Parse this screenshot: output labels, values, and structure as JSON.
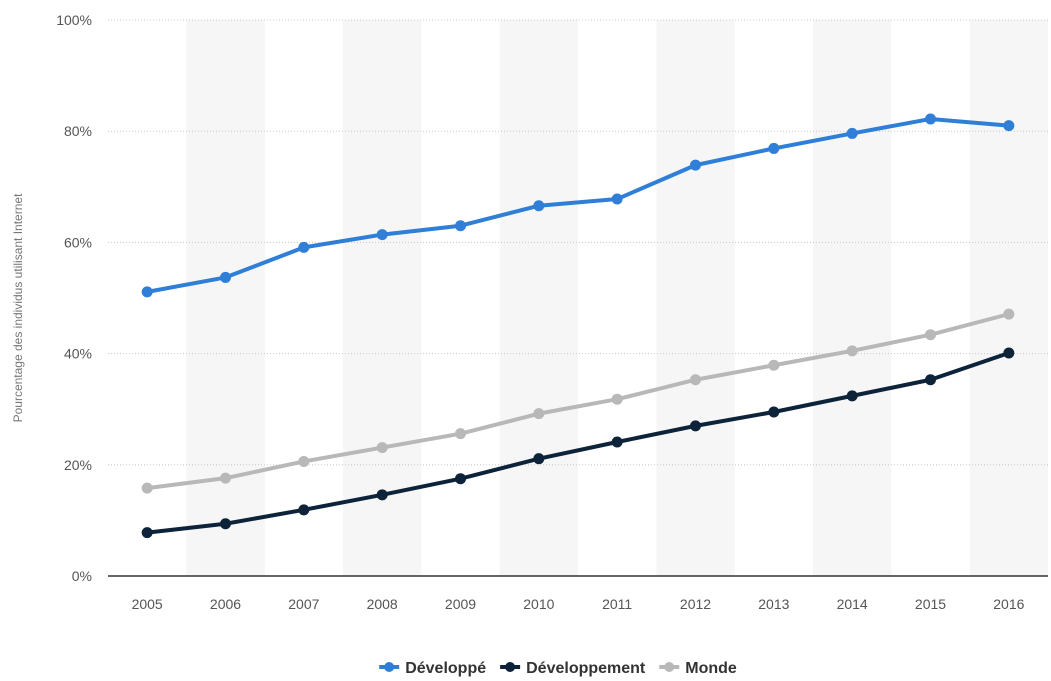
{
  "chart_data": {
    "type": "line",
    "categories": [
      "2005",
      "2006",
      "2007",
      "2008",
      "2009",
      "2010",
      "2011",
      "2012",
      "2013",
      "2014",
      "2015",
      "2016"
    ],
    "ylabel": "Pourcentage des individus utilisant Internet",
    "xlabel": "",
    "title": "",
    "ylim": [
      0,
      100
    ],
    "yticks": [
      "0%",
      "20%",
      "40%",
      "60%",
      "80%",
      "100%"
    ],
    "grid": "horizontal dotted",
    "legend_position": "bottom-center",
    "series": [
      {
        "name": "Développé",
        "color": "#2f7ed8",
        "values": [
          51.1,
          53.7,
          59.1,
          61.4,
          63.0,
          66.6,
          67.8,
          73.9,
          76.9,
          79.6,
          82.2,
          81.0
        ]
      },
      {
        "name": "Développement",
        "color": "#0d233a",
        "values": [
          7.8,
          9.4,
          11.9,
          14.6,
          17.5,
          21.1,
          24.1,
          27.0,
          29.5,
          32.4,
          35.3,
          40.1
        ]
      },
      {
        "name": "Monde",
        "color": "#b8b8b8",
        "values": [
          15.8,
          17.6,
          20.6,
          23.1,
          25.6,
          29.2,
          31.8,
          35.3,
          37.9,
          40.5,
          43.4,
          47.1
        ]
      }
    ]
  }
}
